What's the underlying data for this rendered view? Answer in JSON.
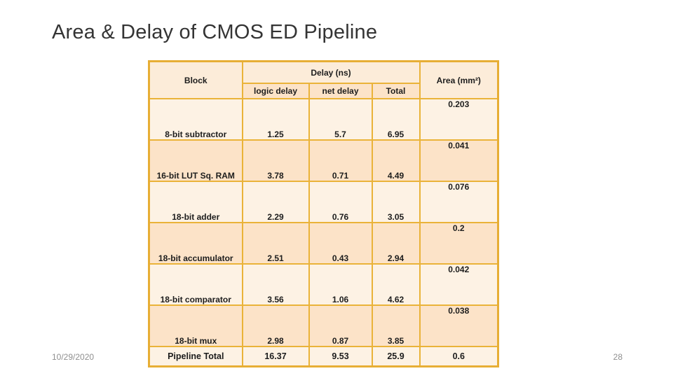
{
  "slide": {
    "title": "Area & Delay of CMOS ED Pipeline",
    "date": "10/29/2020",
    "page_number": "28"
  },
  "table": {
    "header": {
      "block": "Block",
      "delay_group": "Delay (ns)",
      "area": "Area (mm²)",
      "sub": [
        "logic delay",
        "net delay",
        "Total"
      ]
    },
    "rows": [
      {
        "block": "8-bit subtractor",
        "logic": "1.25",
        "net": "5.7",
        "total": "6.95",
        "area": "0.203"
      },
      {
        "block": "16-bit LUT Sq. RAM",
        "logic": "3.78",
        "net": "0.71",
        "total": "4.49",
        "area": "0.041"
      },
      {
        "block": "18-bit adder",
        "logic": "2.29",
        "net": "0.76",
        "total": "3.05",
        "area": "0.076"
      },
      {
        "block": "18-bit accumulator",
        "logic": "2.51",
        "net": "0.43",
        "total": "2.94",
        "area": "0.2"
      },
      {
        "block": "18-bit comparator",
        "logic": "3.56",
        "net": "1.06",
        "total": "4.62",
        "area": "0.042"
      },
      {
        "block": "18-bit mux",
        "logic": "2.98",
        "net": "0.87",
        "total": "3.85",
        "area": "0.038"
      }
    ],
    "total_row": {
      "block": "Pipeline Total",
      "logic": "16.37",
      "net": "9.53",
      "total": "25.9",
      "area": "0.6"
    }
  },
  "colors": {
    "table_border": "#eab339",
    "table_outer_border": "#e7ae35",
    "fill_light": "#fdf2e4",
    "fill_dark": "#fce3c8",
    "fill_header": "#fcecd9",
    "text_dark": "#1d1d1d",
    "text_muted": "#8f8f8f"
  }
}
